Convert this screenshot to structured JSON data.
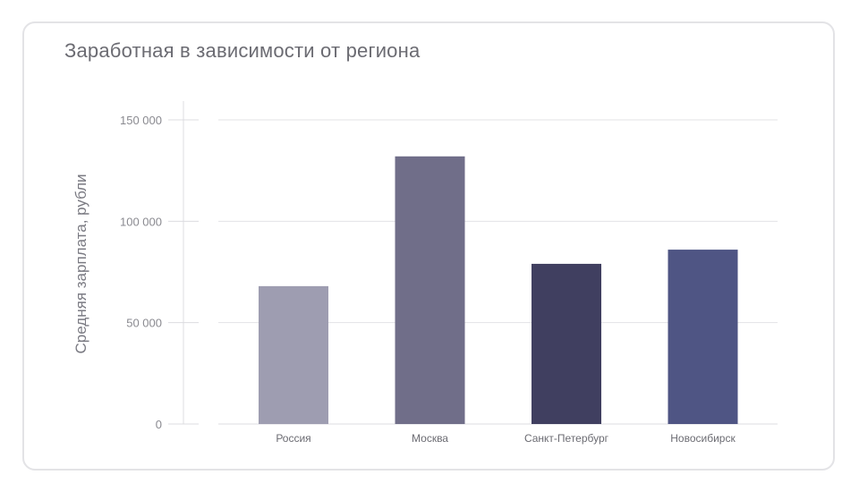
{
  "chart_data": {
    "type": "bar",
    "title": "Заработная в зависимости от региона",
    "ylabel": "Средняя зарплата, рубли",
    "xlabel": "",
    "categories": [
      "Россия",
      "Москва",
      "Санкт-Петербург",
      "Новосибирск"
    ],
    "values": [
      68000,
      132000,
      79000,
      86000
    ],
    "colors": [
      "#9e9db1",
      "#706e89",
      "#403f60",
      "#4f5584"
    ],
    "ylim": [
      0,
      150000
    ],
    "yticks": [
      0,
      50000,
      100000,
      150000
    ],
    "ytick_labels": [
      "0",
      "50 000",
      "100 000",
      "150 000"
    ],
    "grid": true,
    "legend": "none"
  }
}
